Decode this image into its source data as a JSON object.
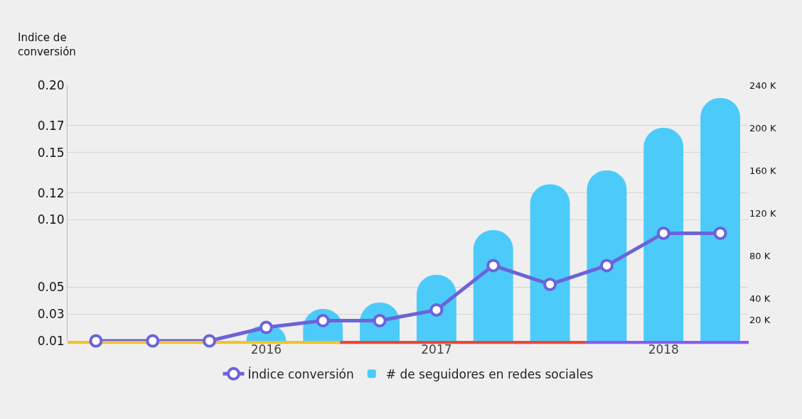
{
  "chart_data": {
    "type": "bar",
    "ylabel": "Indice de conversión",
    "categories": [
      null,
      null,
      null,
      "2016",
      null,
      null,
      "2017",
      null,
      null,
      null,
      "2018",
      null
    ],
    "ylim": [
      0.01,
      0.2
    ],
    "yticks": [
      0.01,
      0.03,
      0.05,
      {
        "value": 0.1,
        "label": "0.10"
      },
      0.12,
      0.15,
      0.17,
      {
        "value": 0.2,
        "label": "0.20"
      }
    ],
    "y2lim": [
      0,
      240
    ],
    "y2ticks": [
      {
        "value": 20,
        "label": "20 K"
      },
      {
        "value": 40,
        "label": "40 K"
      },
      {
        "value": 80,
        "label": "80 K"
      },
      {
        "value": 120,
        "label": "120 K"
      },
      {
        "value": 160,
        "label": "160 K"
      },
      {
        "value": 200,
        "label": "200 K"
      },
      {
        "value": 240,
        "label": "240 K"
      }
    ],
    "series": [
      {
        "name": "# de seguidores en redes sociales",
        "axis": "y2",
        "color": "#4ccbfa",
        "values": [
          null,
          null,
          null,
          14,
          30,
          36,
          62,
          104,
          147,
          160,
          200,
          228
        ]
      },
      {
        "name": "Índice conversión",
        "type": "line",
        "color": "#6c63d9",
        "values": [
          0.01,
          0.01,
          0.01,
          0.02,
          0.025,
          0.025,
          0.033,
          0.066,
          0.052,
          0.066,
          0.09,
          0.09
        ]
      }
    ],
    "marker": "circle",
    "line_style": "solid",
    "grid": "y",
    "legend": "bottom"
  }
}
